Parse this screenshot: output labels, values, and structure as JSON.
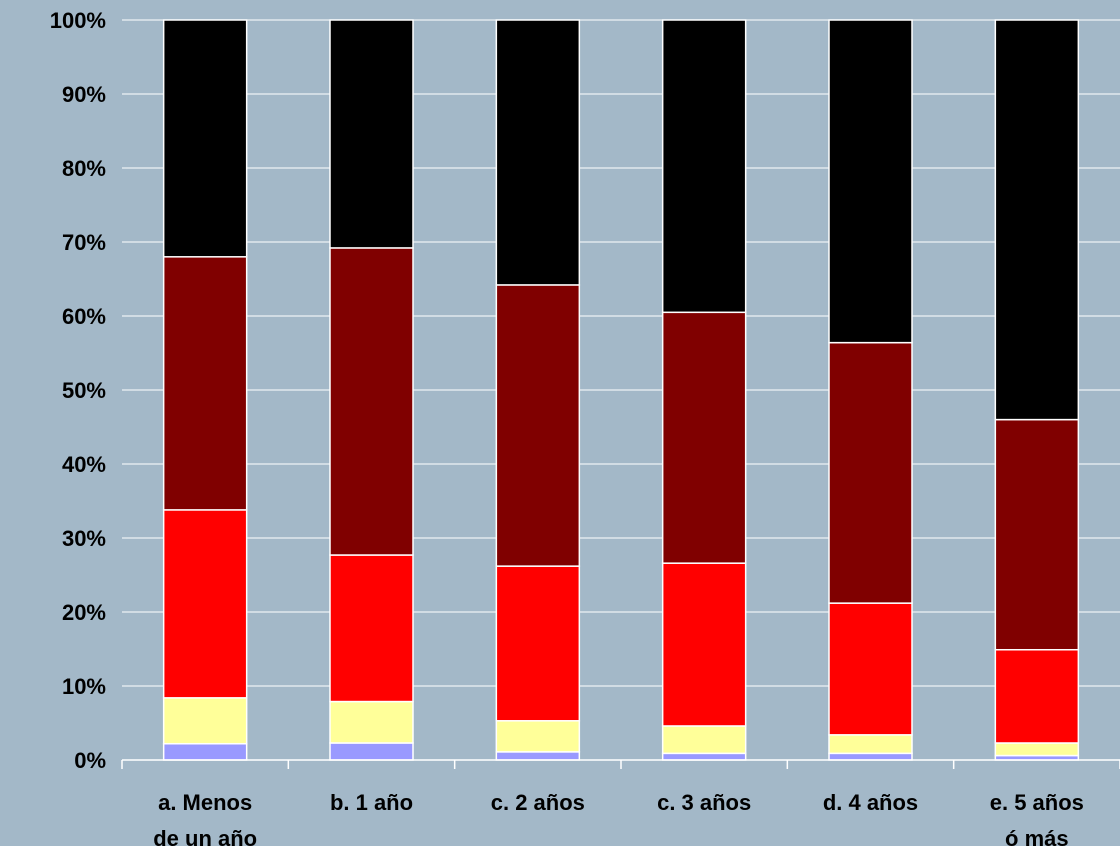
{
  "chart_data": {
    "type": "bar",
    "stacked": true,
    "normalized": true,
    "categories": [
      [
        "a. Menos",
        "de un año"
      ],
      [
        "b. 1 año"
      ],
      [
        "c. 2 años"
      ],
      [
        "c. 3 años"
      ],
      [
        "d. 4 años"
      ],
      [
        "e. 5 años",
        "ó más"
      ]
    ],
    "series": [
      {
        "color": "#9999ff",
        "values": [
          2.2,
          2.3,
          1.1,
          0.9,
          0.9,
          0.6
        ]
      },
      {
        "color": "#ffff99",
        "values": [
          6.2,
          5.6,
          4.2,
          3.7,
          2.5,
          1.7
        ]
      },
      {
        "color": "#ff0000",
        "values": [
          25.4,
          19.8,
          20.9,
          22.0,
          17.8,
          12.6
        ]
      },
      {
        "color": "#800000",
        "values": [
          34.2,
          41.5,
          38.0,
          33.9,
          35.2,
          31.1
        ]
      },
      {
        "color": "#000000",
        "values": [
          32.0,
          30.8,
          35.8,
          39.5,
          43.6,
          54.0
        ]
      }
    ],
    "ylim": [
      0,
      100
    ],
    "yticks": [
      "0%",
      "10%",
      "20%",
      "30%",
      "40%",
      "50%",
      "60%",
      "70%",
      "80%",
      "90%",
      "100%"
    ],
    "grid": true,
    "legend": "none",
    "title": "",
    "xlabel": "",
    "ylabel": ""
  }
}
